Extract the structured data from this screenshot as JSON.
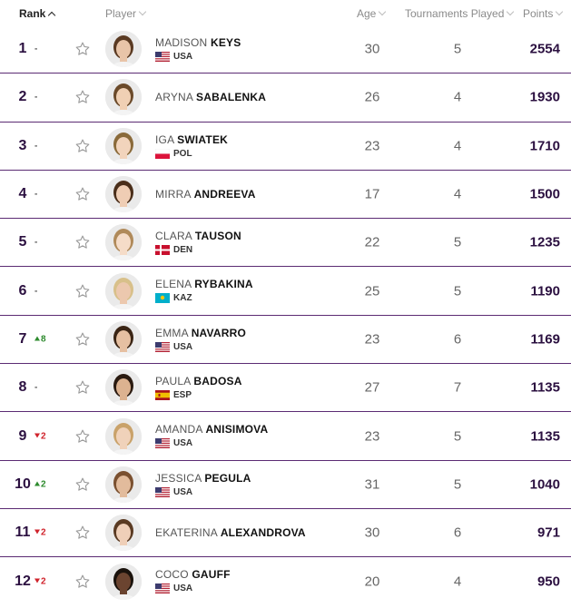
{
  "header": {
    "rank": "Rank",
    "player": "Player",
    "age": "Age",
    "tournaments": "Tournaments Played",
    "points": "Points"
  },
  "colors": {
    "accent": "#5b2b73",
    "rank_text": "#2b1040",
    "up": "#2e8b2e",
    "down": "#d0232c"
  },
  "rows": [
    {
      "rank": "1",
      "move": "-",
      "move_dir": "same",
      "first": "MADISON",
      "last": "KEYS",
      "country": "USA",
      "flag": "usa-flag-icon",
      "age": "30",
      "tournaments": "5",
      "points": "2554"
    },
    {
      "rank": "2",
      "move": "-",
      "move_dir": "same",
      "first": "ARYNA",
      "last": "SABALENKA",
      "country": "",
      "flag": "",
      "age": "26",
      "tournaments": "4",
      "points": "1930"
    },
    {
      "rank": "3",
      "move": "-",
      "move_dir": "same",
      "first": "IGA",
      "last": "SWIATEK",
      "country": "POL",
      "flag": "pol-flag-icon",
      "age": "23",
      "tournaments": "4",
      "points": "1710"
    },
    {
      "rank": "4",
      "move": "-",
      "move_dir": "same",
      "first": "MIRRA",
      "last": "ANDREEVA",
      "country": "",
      "flag": "",
      "age": "17",
      "tournaments": "4",
      "points": "1500"
    },
    {
      "rank": "5",
      "move": "-",
      "move_dir": "same",
      "first": "CLARA",
      "last": "TAUSON",
      "country": "DEN",
      "flag": "den-flag-icon",
      "age": "22",
      "tournaments": "5",
      "points": "1235"
    },
    {
      "rank": "6",
      "move": "-",
      "move_dir": "same",
      "first": "ELENA",
      "last": "RYBAKINA",
      "country": "KAZ",
      "flag": "kaz-flag-icon",
      "age": "25",
      "tournaments": "5",
      "points": "1190"
    },
    {
      "rank": "7",
      "move": "8",
      "move_dir": "up",
      "first": "EMMA",
      "last": "NAVARRO",
      "country": "USA",
      "flag": "usa-flag-icon",
      "age": "23",
      "tournaments": "6",
      "points": "1169"
    },
    {
      "rank": "8",
      "move": "-",
      "move_dir": "same",
      "first": "PAULA",
      "last": "BADOSA",
      "country": "ESP",
      "flag": "esp-flag-icon",
      "age": "27",
      "tournaments": "7",
      "points": "1135"
    },
    {
      "rank": "9",
      "move": "2",
      "move_dir": "down",
      "first": "AMANDA",
      "last": "ANISIMOVA",
      "country": "USA",
      "flag": "usa-flag-icon",
      "age": "23",
      "tournaments": "5",
      "points": "1135"
    },
    {
      "rank": "10",
      "move": "2",
      "move_dir": "up",
      "first": "JESSICA",
      "last": "PEGULA",
      "country": "USA",
      "flag": "usa-flag-icon",
      "age": "31",
      "tournaments": "5",
      "points": "1040"
    },
    {
      "rank": "11",
      "move": "2",
      "move_dir": "down",
      "first": "EKATERINA",
      "last": "ALEXANDROVA",
      "country": "",
      "flag": "",
      "age": "30",
      "tournaments": "6",
      "points": "971"
    },
    {
      "rank": "12",
      "move": "2",
      "move_dir": "down",
      "first": "COCO",
      "last": "GAUFF",
      "country": "USA",
      "flag": "usa-flag-icon",
      "age": "20",
      "tournaments": "4",
      "points": "950"
    }
  ]
}
